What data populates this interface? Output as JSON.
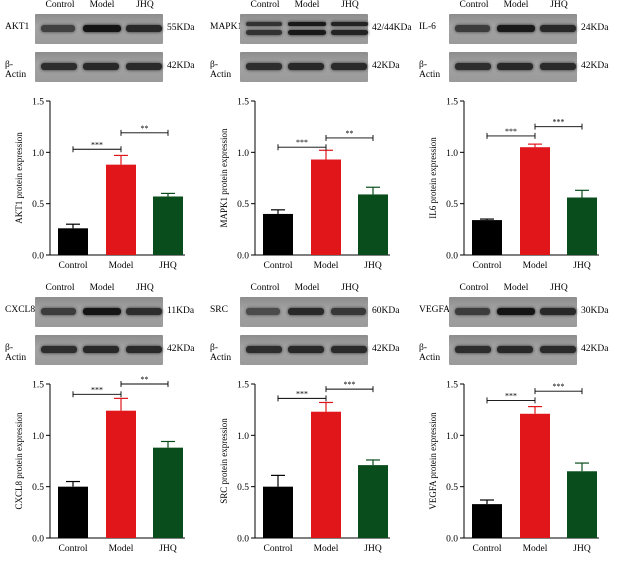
{
  "lane_labels": [
    "Control",
    "Model",
    "JHQ"
  ],
  "loading_control": {
    "label": "β-Actin",
    "size": "42KDa"
  },
  "colors": {
    "control": "#000000",
    "model": "#e0161b",
    "jhq": "#0a4d1c"
  },
  "panels": [
    {
      "protein": "AKT1",
      "size": "55KDa",
      "band_style": "single",
      "intensities": [
        0.55,
        1.0,
        0.8
      ]
    },
    {
      "protein": "MAPK1",
      "size": "42/44KDa",
      "band_style": "double",
      "intensities": [
        0.7,
        0.95,
        0.85
      ]
    },
    {
      "protein": "IL-6",
      "size": "24KDa",
      "band_style": "single",
      "intensities": [
        0.6,
        0.95,
        0.8
      ]
    },
    {
      "protein": "CXCL8",
      "size": "11KDa",
      "band_style": "single",
      "intensities": [
        0.6,
        1.0,
        0.75
      ]
    },
    {
      "protein": "SRC",
      "size": "60KDa",
      "band_style": "single",
      "intensities": [
        0.45,
        0.8,
        0.65
      ]
    },
    {
      "protein": "VEGFA",
      "size": "30KDa",
      "band_style": "single",
      "intensities": [
        0.6,
        1.0,
        0.8
      ]
    }
  ],
  "chart_data": [
    {
      "type": "bar",
      "categories": [
        "Control",
        "Model",
        "JHQ"
      ],
      "values": [
        0.26,
        0.88,
        0.57
      ],
      "errors": [
        0.04,
        0.09,
        0.03
      ],
      "ylabel": "AKT1 protein expression",
      "ylim": [
        0,
        1.5
      ],
      "yticks": [
        0.0,
        0.5,
        1.0,
        1.5
      ],
      "significance": [
        {
          "from": 0,
          "to": 1,
          "label": "***",
          "y": 1.03
        },
        {
          "from": 1,
          "to": 2,
          "label": "**",
          "y": 1.19
        }
      ]
    },
    {
      "type": "bar",
      "categories": [
        "Control",
        "Model",
        "JHQ"
      ],
      "values": [
        0.4,
        0.93,
        0.59
      ],
      "errors": [
        0.04,
        0.09,
        0.07
      ],
      "ylabel": "MAPK1 protein expression",
      "ylim": [
        0,
        1.5
      ],
      "yticks": [
        0.0,
        0.5,
        1.0,
        1.5
      ],
      "significance": [
        {
          "from": 0,
          "to": 1,
          "label": "***",
          "y": 1.05
        },
        {
          "from": 1,
          "to": 2,
          "label": "**",
          "y": 1.14
        }
      ]
    },
    {
      "type": "bar",
      "categories": [
        "Control",
        "Model",
        "JHQ"
      ],
      "values": [
        0.34,
        1.05,
        0.56
      ],
      "errors": [
        0.01,
        0.03,
        0.07
      ],
      "ylabel": "IL6 protein expression",
      "ylim": [
        0,
        1.5
      ],
      "yticks": [
        0.0,
        0.5,
        1.0,
        1.5
      ],
      "significance": [
        {
          "from": 0,
          "to": 1,
          "label": "***",
          "y": 1.16
        },
        {
          "from": 1,
          "to": 2,
          "label": "***",
          "y": 1.25
        }
      ]
    },
    {
      "type": "bar",
      "categories": [
        "Control",
        "Model",
        "JHQ"
      ],
      "values": [
        0.5,
        1.24,
        0.88
      ],
      "errors": [
        0.05,
        0.12,
        0.06
      ],
      "ylabel": "CXCL8 protein expression",
      "ylim": [
        0,
        1.5
      ],
      "yticks": [
        0.0,
        0.5,
        1.0,
        1.5
      ],
      "significance": [
        {
          "from": 0,
          "to": 1,
          "label": "***",
          "y": 1.4
        },
        {
          "from": 1,
          "to": 2,
          "label": "**",
          "y": 1.5
        }
      ]
    },
    {
      "type": "bar",
      "categories": [
        "Control",
        "Model",
        "JHQ"
      ],
      "values": [
        0.5,
        1.23,
        0.71
      ],
      "errors": [
        0.11,
        0.09,
        0.05
      ],
      "ylabel": "SRC protein expression",
      "ylim": [
        0,
        1.5
      ],
      "yticks": [
        0.0,
        0.5,
        1.0,
        1.5
      ],
      "significance": [
        {
          "from": 0,
          "to": 1,
          "label": "***",
          "y": 1.36
        },
        {
          "from": 1,
          "to": 2,
          "label": "***",
          "y": 1.45
        }
      ]
    },
    {
      "type": "bar",
      "categories": [
        "Control",
        "Model",
        "JHQ"
      ],
      "values": [
        0.33,
        1.21,
        0.65
      ],
      "errors": [
        0.04,
        0.07,
        0.08
      ],
      "ylabel": "VEGFA protein expression",
      "ylim": [
        0,
        1.5
      ],
      "yticks": [
        0.0,
        0.5,
        1.0,
        1.5
      ],
      "significance": [
        {
          "from": 0,
          "to": 1,
          "label": "***",
          "y": 1.34
        },
        {
          "from": 1,
          "to": 2,
          "label": "***",
          "y": 1.43
        }
      ]
    }
  ]
}
